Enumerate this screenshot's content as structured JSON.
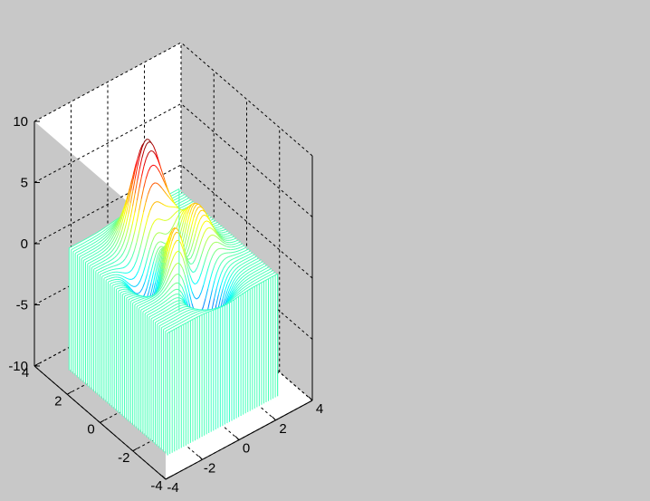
{
  "chart_data": {
    "type": "waterfall-3d",
    "description": "MATLAB peaks surface drawn as a waterfall (curtain) plot with jet colormap",
    "function": "peaks",
    "x_range": [
      -3,
      3
    ],
    "y_range": [
      -3,
      3
    ],
    "z_peak_max": 8.1,
    "z_peak_min": -6.5,
    "grid": true,
    "box": true,
    "colormap": "jet",
    "axes": {
      "x": {
        "lim": [
          -4,
          4
        ],
        "ticks": [
          "-4",
          "-2",
          "0",
          "2",
          "4"
        ]
      },
      "y": {
        "lim": [
          -4,
          4
        ],
        "ticks": [
          "-4",
          "-2",
          "0",
          "2",
          "4"
        ]
      },
      "z": {
        "lim": [
          -10,
          10
        ],
        "ticks": [
          "-10",
          "-5",
          "0",
          "5",
          "10"
        ]
      }
    },
    "view": {
      "azimuth": -37.5,
      "elevation": 30
    }
  }
}
